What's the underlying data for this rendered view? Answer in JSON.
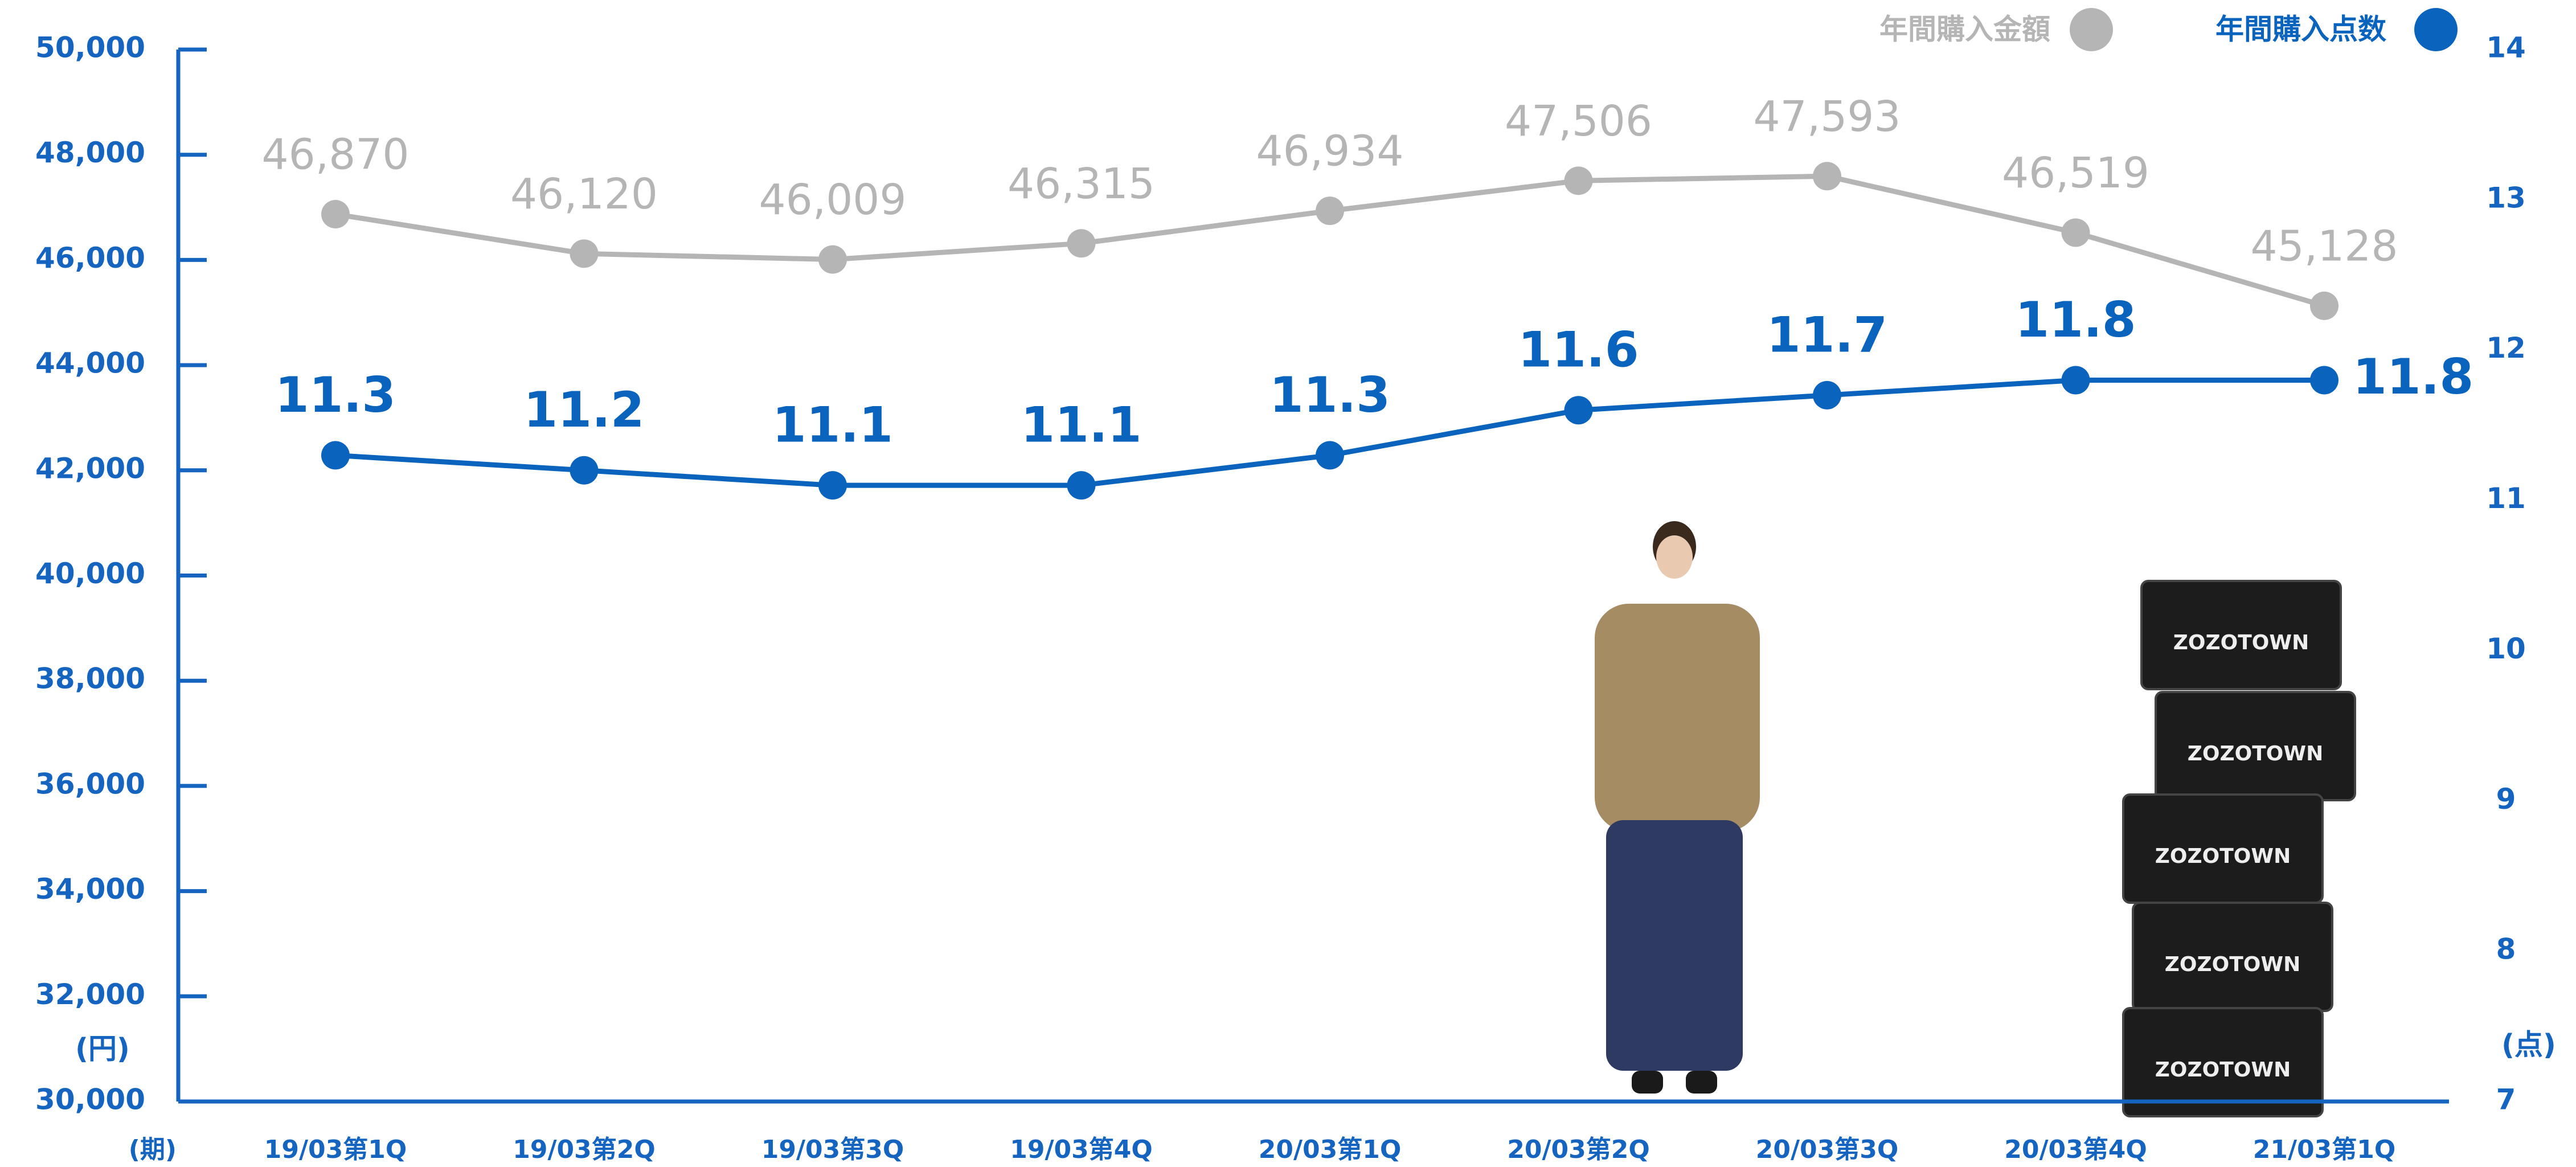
{
  "chart_data": {
    "type": "line",
    "categories": [
      "19/03第1Q",
      "19/03第2Q",
      "19/03第3Q",
      "19/03第4Q",
      "20/03第1Q",
      "20/03第2Q",
      "20/03第3Q",
      "20/03第4Q",
      "21/03第1Q"
    ],
    "x_unit_label": "(期)",
    "y_unit_label": "(円)",
    "y2_unit_label": "(点)",
    "series": [
      {
        "name": "年間購入金額",
        "color": "#b5b5b5",
        "axis": "y",
        "values": [
          46870,
          46120,
          46009,
          46315,
          46934,
          47506,
          47593,
          46519,
          45128
        ],
        "value_labels": [
          "46,870",
          "46,120",
          "46,009",
          "46,315",
          "46,934",
          "47,506",
          "47,593",
          "46,519",
          "45,128"
        ]
      },
      {
        "name": "年間購入点数",
        "color": "#0a64be",
        "axis": "y2",
        "values": [
          11.3,
          11.2,
          11.1,
          11.1,
          11.3,
          11.6,
          11.7,
          11.8,
          11.8
        ]
      }
    ],
    "ylim": [
      30000,
      50000
    ],
    "yticks": [
      {
        "value": 30000,
        "label": "30,000"
      },
      {
        "value": 32000,
        "label": "32,000"
      },
      {
        "value": 34000,
        "label": "34,000"
      },
      {
        "value": 36000,
        "label": "36,000"
      },
      {
        "value": 38000,
        "label": "38,000"
      },
      {
        "value": 40000,
        "label": "40,000"
      },
      {
        "value": 42000,
        "label": "42,000"
      },
      {
        "value": 44000,
        "label": "44,000"
      },
      {
        "value": 46000,
        "label": "46,000"
      },
      {
        "value": 48000,
        "label": "48,000"
      },
      {
        "value": 50000,
        "label": "50,000"
      }
    ],
    "y2lim": [
      7,
      14
    ],
    "y2ticks": [
      7,
      8,
      9,
      10,
      11,
      12,
      13,
      14
    ],
    "legend": "top-right",
    "axis_color": "#1565c0"
  },
  "illustration": {
    "box_label": "ZOZOTOWN"
  }
}
